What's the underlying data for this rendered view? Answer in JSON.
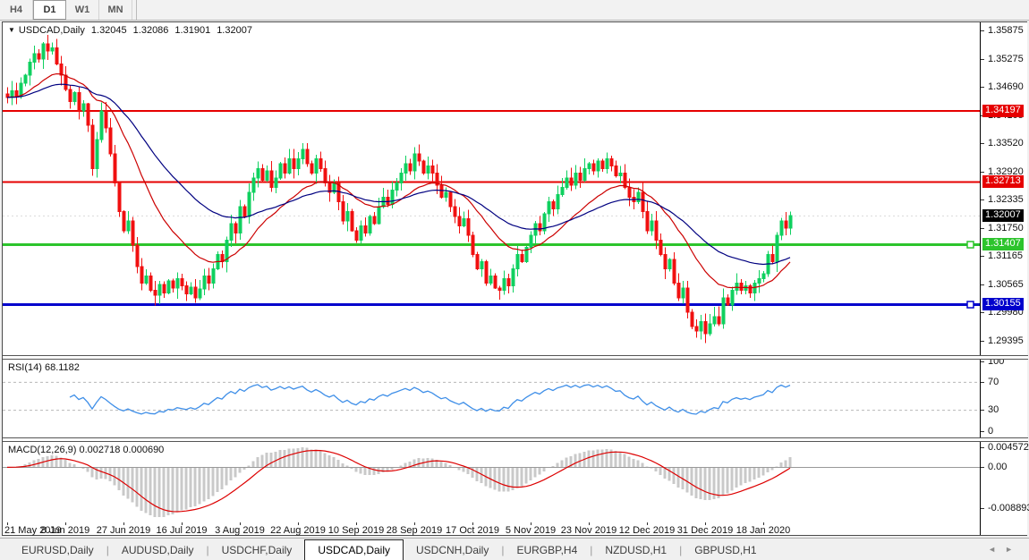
{
  "toolbar": {
    "timeframes": [
      {
        "label": "H4",
        "active": false
      },
      {
        "label": "D1",
        "active": true
      },
      {
        "label": "W1",
        "active": false
      },
      {
        "label": "MN",
        "active": false
      }
    ]
  },
  "chart": {
    "title": {
      "symbol": "USDCAD,Daily",
      "open": "1.32045",
      "high": "1.32086",
      "low": "1.31901",
      "close": "1.32007"
    },
    "price_axis": {
      "ticks": [
        "1.35875",
        "1.35275",
        "1.34690",
        "1.34105",
        "1.33520",
        "1.32920",
        "1.32335",
        "1.31750",
        "1.31165",
        "1.30565",
        "1.29980",
        "1.29395"
      ]
    }
  },
  "chart_data": {
    "type": "candlestick",
    "title": "USDCAD,Daily",
    "x_labels": [
      "21 May 2019",
      "8 Jun 2019",
      "27 Jun 2019",
      "16 Jul 2019",
      "3 Aug 2019",
      "22 Aug 2019",
      "10 Sep 2019",
      "28 Sep 2019",
      "17 Oct 2019",
      "5 Nov 2019",
      "23 Nov 2019",
      "12 Dec 2019",
      "31 Dec 2019",
      "18 Jan 2020"
    ],
    "bars_per_label": 13,
    "ylim": [
      1.291,
      1.3605
    ],
    "closes": [
      1.3448,
      1.3462,
      1.345,
      1.3478,
      1.3495,
      1.3522,
      1.354,
      1.3528,
      1.356,
      1.3545,
      1.3552,
      1.3518,
      1.3495,
      1.3465,
      1.344,
      1.3458,
      1.342,
      1.3435,
      1.339,
      1.33,
      1.336,
      1.342,
      1.3385,
      1.333,
      1.327,
      1.321,
      1.317,
      1.319,
      1.314,
      1.3095,
      1.306,
      1.3075,
      1.3045,
      1.3035,
      1.3058,
      1.304,
      1.3065,
      1.305,
      1.307,
      1.3055,
      1.3038,
      1.3052,
      1.303,
      1.3048,
      1.3075,
      1.306,
      1.309,
      1.312,
      1.3105,
      1.315,
      1.3185,
      1.3165,
      1.322,
      1.32,
      1.325,
      1.328,
      1.33,
      1.3275,
      1.3295,
      1.326,
      1.328,
      1.331,
      1.329,
      1.332,
      1.33,
      1.332,
      1.334,
      1.331,
      1.329,
      1.332,
      1.33,
      1.327,
      1.325,
      1.327,
      1.323,
      1.319,
      1.321,
      1.317,
      1.315,
      1.318,
      1.3165,
      1.32,
      1.3185,
      1.322,
      1.324,
      1.3225,
      1.3255,
      1.327,
      1.329,
      1.331,
      1.3295,
      1.333,
      1.3315,
      1.329,
      1.3305,
      1.329,
      1.3265,
      1.324,
      1.325,
      1.322,
      1.32,
      1.318,
      1.3195,
      1.316,
      1.312,
      1.309,
      1.3105,
      1.306,
      1.3075,
      1.305,
      1.3045,
      1.307,
      1.3055,
      1.309,
      1.312,
      1.3105,
      1.3135,
      1.316,
      1.3185,
      1.317,
      1.3205,
      1.323,
      1.3215,
      1.3245,
      1.326,
      1.328,
      1.3265,
      1.329,
      1.3275,
      1.33,
      1.331,
      1.3295,
      1.3315,
      1.33,
      1.332,
      1.3305,
      1.3285,
      1.329,
      1.326,
      1.324,
      1.323,
      1.325,
      1.321,
      1.317,
      1.319,
      1.315,
      1.312,
      1.309,
      1.311,
      1.306,
      1.303,
      1.305,
      1.3,
      1.297,
      1.296,
      1.298,
      1.2955,
      1.2975,
      1.299,
      1.2975,
      1.303,
      1.3015,
      1.3045,
      1.306,
      1.3045,
      1.3055,
      1.304,
      1.306,
      1.307,
      1.308,
      1.312,
      1.3105,
      1.316,
      1.319,
      1.3175,
      1.3201
    ],
    "horizontal_lines": [
      {
        "label": "1.34197",
        "price": 1.34197,
        "color_key": "line_red",
        "width": 2,
        "handle": false
      },
      {
        "label": "1.32713",
        "price": 1.32713,
        "color_key": "line_red",
        "width": 2,
        "handle": false
      },
      {
        "label": "1.31407",
        "price": 1.31407,
        "color_key": "line_green",
        "width": 3,
        "handle": true
      },
      {
        "label": "1.30155",
        "price": 1.30155,
        "color_key": "line_blue",
        "width": 3,
        "handle": true
      }
    ],
    "current_price": {
      "label": "1.32007",
      "price": 1.32007
    },
    "moving_averages": [
      {
        "period": 20,
        "color_key": "ma_fast"
      },
      {
        "period": 45,
        "color_key": "ma_slow"
      }
    ],
    "indicators": [
      {
        "name": "RSI",
        "params": [
          14
        ],
        "display_value": "68.1182",
        "levels": [
          70,
          30
        ],
        "axis_ticks": [
          "100",
          "70",
          "30",
          "0"
        ]
      },
      {
        "name": "MACD",
        "params": [
          12,
          26,
          9
        ],
        "display_values": [
          "0.002718",
          "0.000690"
        ],
        "axis_ticks": [
          "0.004572",
          "0.00",
          "-0.008893"
        ]
      }
    ]
  },
  "rsi_panel": {
    "label": "RSI(14)",
    "value": "68.1182"
  },
  "macd_panel": {
    "label": "MACD(12,26,9)",
    "values": "0.002718 0.000690"
  },
  "tabs": {
    "items": [
      {
        "label": "EURUSD,Daily",
        "active": false
      },
      {
        "label": "AUDUSD,Daily",
        "active": false
      },
      {
        "label": "USDCHF,Daily",
        "active": false
      },
      {
        "label": "USDCAD,Daily",
        "active": true
      },
      {
        "label": "USDCNH,Daily",
        "active": false
      },
      {
        "label": "EURGBP,H4",
        "active": false
      },
      {
        "label": "NZDUSD,H1",
        "active": false
      },
      {
        "label": "GBPUSD,H1",
        "active": false
      }
    ],
    "scroll_left": "◄",
    "scroll_right": "►"
  },
  "colors": {
    "up": "#0fd05f",
    "down": "#f01010",
    "ma_fast": "#cc0000",
    "ma_slow": "#000080",
    "line_red": "#e60000",
    "line_green": "#2cc42c",
    "line_blue": "#0000cc",
    "rsi": "#3f8fe8",
    "rsi_level": "#b8b8b8",
    "macd_hist": "#c9c9c9",
    "macd_signal": "#dd0000",
    "badge_current": "#000000",
    "current_price_line": "#d9d9d9"
  }
}
